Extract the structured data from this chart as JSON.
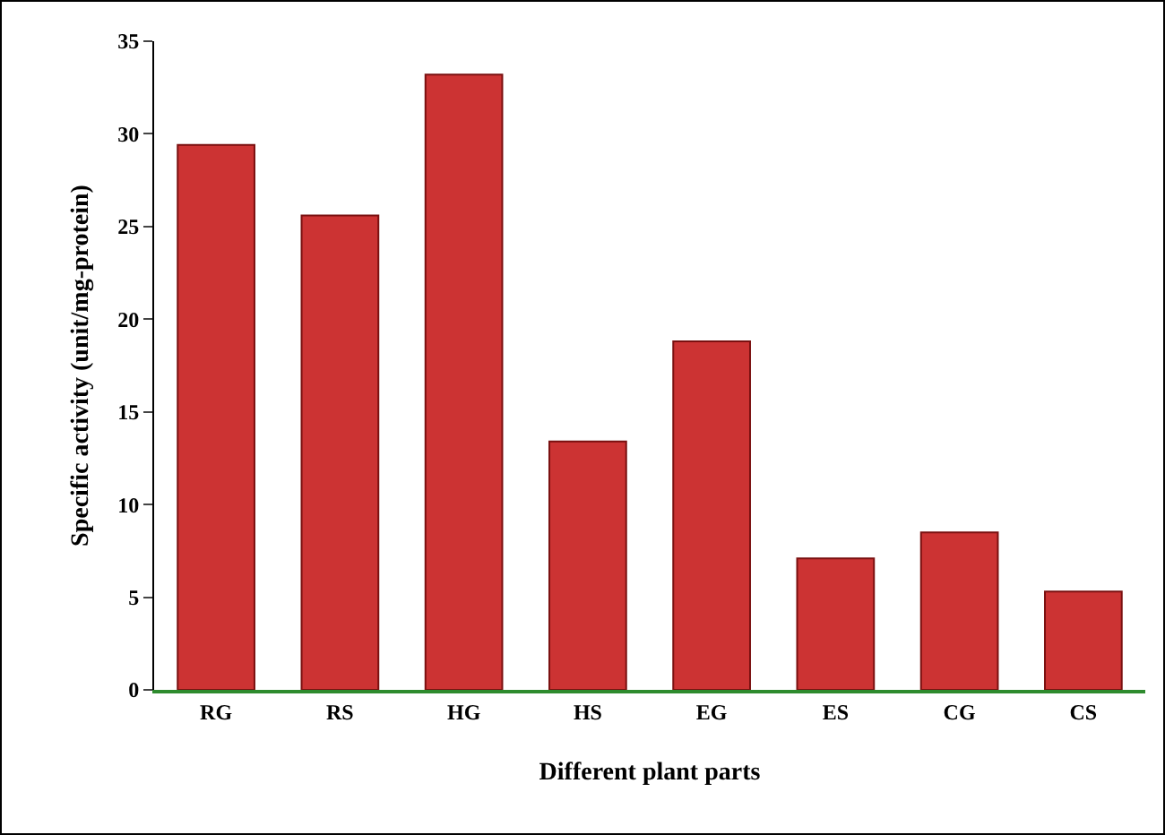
{
  "chart_data": {
    "type": "bar",
    "xlabel": "Different plant parts",
    "ylabel": "Specific activity (unit/mg-protein)",
    "categories": [
      "RG",
      "RS",
      "HG",
      "HS",
      "EG",
      "ES",
      "CG",
      "CS"
    ],
    "values": [
      29.4,
      25.6,
      33.2,
      13.4,
      18.8,
      7.1,
      8.5,
      5.3
    ],
    "color": "#cc3333",
    "ylim": [
      0,
      35
    ],
    "yticks": [
      0,
      5,
      10,
      15,
      20,
      25,
      30,
      35
    ],
    "grid": false,
    "legend": false
  }
}
